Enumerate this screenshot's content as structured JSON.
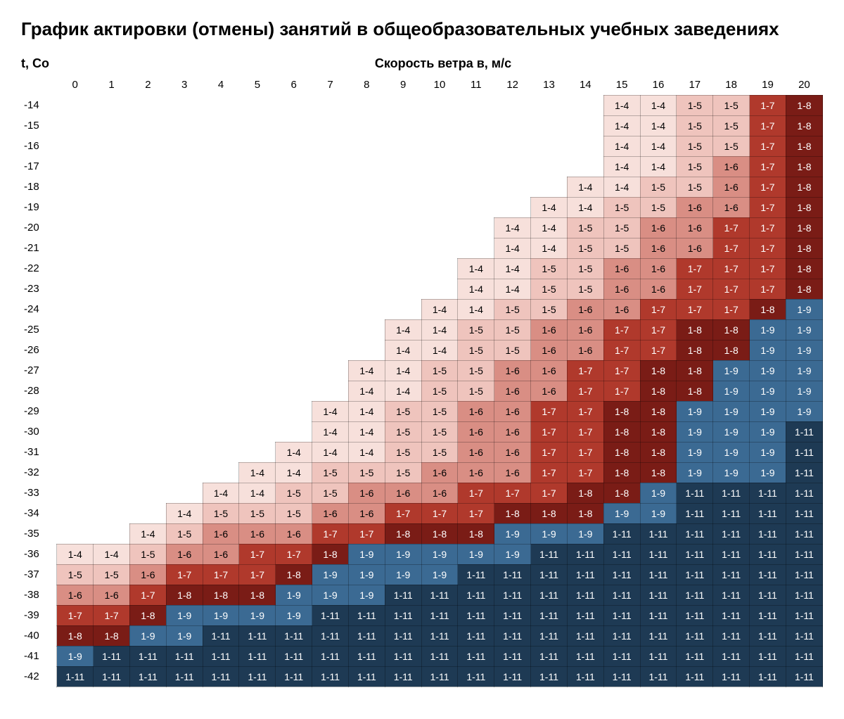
{
  "title": "График актировки (отмены) занятий в общеобразовательных учебных заведениях",
  "y_axis_label": "t, Со",
  "x_axis_label": "Скорость ветра в, м/с",
  "title_fontsize": 26,
  "header_fontsize": 18,
  "cell_fontsize": 14,
  "wind_speeds": [
    0,
    1,
    2,
    3,
    4,
    5,
    6,
    7,
    8,
    9,
    10,
    11,
    12,
    13,
    14,
    15,
    16,
    17,
    18,
    19,
    20
  ],
  "temperatures": [
    -14,
    -15,
    -16,
    -17,
    -18,
    -19,
    -20,
    -21,
    -22,
    -23,
    -24,
    -25,
    -26,
    -27,
    -28,
    -29,
    -30,
    -31,
    -32,
    -33,
    -34,
    -35,
    -36,
    -37,
    -38,
    -39,
    -40,
    -41,
    -42
  ],
  "grade_levels": {
    "1-4": {
      "bg": "#f7e0db",
      "fg": "#000000"
    },
    "1-5": {
      "bg": "#efc4bd",
      "fg": "#000000"
    },
    "1-6": {
      "bg": "#d98e84",
      "fg": "#000000"
    },
    "1-7": {
      "bg": "#b0392c",
      "fg": "#ffffff"
    },
    "1-8": {
      "bg": "#7a1c16",
      "fg": "#ffffff"
    },
    "1-9": {
      "bg": "#3b6a93",
      "fg": "#ffffff"
    },
    "1-11": {
      "bg": "#1e3a54",
      "fg": "#ffffff"
    }
  },
  "grid_border_color": "rgba(0,0,0,0.25)",
  "background_color": "#ffffff",
  "cells": {
    "-14": {
      "15": "1-4",
      "16": "1-4",
      "17": "1-5",
      "18": "1-5",
      "19": "1-7",
      "20": "1-8"
    },
    "-15": {
      "15": "1-4",
      "16": "1-4",
      "17": "1-5",
      "18": "1-5",
      "19": "1-7",
      "20": "1-8"
    },
    "-16": {
      "15": "1-4",
      "16": "1-4",
      "17": "1-5",
      "18": "1-5",
      "19": "1-7",
      "20": "1-8"
    },
    "-17": {
      "15": "1-4",
      "16": "1-4",
      "17": "1-5",
      "18": "1-6",
      "19": "1-7",
      "20": "1-8"
    },
    "-18": {
      "14": "1-4",
      "15": "1-4",
      "16": "1-5",
      "17": "1-5",
      "18": "1-6",
      "19": "1-7",
      "20": "1-8"
    },
    "-19": {
      "13": "1-4",
      "14": "1-4",
      "15": "1-5",
      "16": "1-5",
      "17": "1-6",
      "18": "1-6",
      "19": "1-7",
      "20": "1-8"
    },
    "-20": {
      "12": "1-4",
      "13": "1-4",
      "14": "1-5",
      "15": "1-5",
      "16": "1-6",
      "17": "1-6",
      "18": "1-7",
      "19": "1-7",
      "20": "1-8"
    },
    "-21": {
      "12": "1-4",
      "13": "1-4",
      "14": "1-5",
      "15": "1-5",
      "16": "1-6",
      "17": "1-6",
      "18": "1-7",
      "19": "1-7",
      "20": "1-8"
    },
    "-22": {
      "11": "1-4",
      "12": "1-4",
      "13": "1-5",
      "14": "1-5",
      "15": "1-6",
      "16": "1-6",
      "17": "1-7",
      "18": "1-7",
      "19": "1-7",
      "20": "1-8"
    },
    "-23": {
      "11": "1-4",
      "12": "1-4",
      "13": "1-5",
      "14": "1-5",
      "15": "1-6",
      "16": "1-6",
      "17": "1-7",
      "18": "1-7",
      "19": "1-7",
      "20": "1-8"
    },
    "-24": {
      "10": "1-4",
      "11": "1-4",
      "12": "1-5",
      "13": "1-5",
      "14": "1-6",
      "15": "1-6",
      "16": "1-7",
      "17": "1-7",
      "18": "1-7",
      "19": "1-8",
      "20": "1-9"
    },
    "-25": {
      "9": "1-4",
      "10": "1-4",
      "11": "1-5",
      "12": "1-5",
      "13": "1-6",
      "14": "1-6",
      "15": "1-7",
      "16": "1-7",
      "17": "1-8",
      "18": "1-8",
      "19": "1-9",
      "20": "1-9"
    },
    "-26": {
      "9": "1-4",
      "10": "1-4",
      "11": "1-5",
      "12": "1-5",
      "13": "1-6",
      "14": "1-6",
      "15": "1-7",
      "16": "1-7",
      "17": "1-8",
      "18": "1-8",
      "19": "1-9",
      "20": "1-9"
    },
    "-27": {
      "8": "1-4",
      "9": "1-4",
      "10": "1-5",
      "11": "1-5",
      "12": "1-6",
      "13": "1-6",
      "14": "1-7",
      "15": "1-7",
      "16": "1-8",
      "17": "1-8",
      "18": "1-9",
      "19": "1-9",
      "20": "1-9"
    },
    "-28": {
      "8": "1-4",
      "9": "1-4",
      "10": "1-5",
      "11": "1-5",
      "12": "1-6",
      "13": "1-6",
      "14": "1-7",
      "15": "1-7",
      "16": "1-8",
      "17": "1-8",
      "18": "1-9",
      "19": "1-9",
      "20": "1-9"
    },
    "-29": {
      "7": "1-4",
      "8": "1-4",
      "9": "1-5",
      "10": "1-5",
      "11": "1-6",
      "12": "1-6",
      "13": "1-7",
      "14": "1-7",
      "15": "1-8",
      "16": "1-8",
      "17": "1-9",
      "18": "1-9",
      "19": "1-9",
      "20": "1-9"
    },
    "-30": {
      "7": "1-4",
      "8": "1-4",
      "9": "1-5",
      "10": "1-5",
      "11": "1-6",
      "12": "1-6",
      "13": "1-7",
      "14": "1-7",
      "15": "1-8",
      "16": "1-8",
      "17": "1-9",
      "18": "1-9",
      "19": "1-9",
      "20": "1-11"
    },
    "-31": {
      "6": "1-4",
      "7": "1-4",
      "8": "1-4",
      "9": "1-5",
      "10": "1-5",
      "11": "1-6",
      "12": "1-6",
      "13": "1-7",
      "14": "1-7",
      "15": "1-8",
      "16": "1-8",
      "17": "1-9",
      "18": "1-9",
      "19": "1-9",
      "20": "1-11"
    },
    "-32": {
      "5": "1-4",
      "6": "1-4",
      "7": "1-5",
      "8": "1-5",
      "9": "1-5",
      "10": "1-6",
      "11": "1-6",
      "12": "1-6",
      "13": "1-7",
      "14": "1-7",
      "15": "1-8",
      "16": "1-8",
      "17": "1-9",
      "18": "1-9",
      "19": "1-9",
      "20": "1-11"
    },
    "-33": {
      "4": "1-4",
      "5": "1-4",
      "6": "1-5",
      "7": "1-5",
      "8": "1-6",
      "9": "1-6",
      "10": "1-6",
      "11": "1-7",
      "12": "1-7",
      "13": "1-7",
      "14": "1-8",
      "15": "1-8",
      "16": "1-9",
      "17": "1-11",
      "18": "1-11",
      "19": "1-11",
      "20": "1-11"
    },
    "-34": {
      "3": "1-4",
      "4": "1-5",
      "5": "1-5",
      "6": "1-5",
      "7": "1-6",
      "8": "1-6",
      "9": "1-7",
      "10": "1-7",
      "11": "1-7",
      "12": "1-8",
      "13": "1-8",
      "14": "1-8",
      "15": "1-9",
      "16": "1-9",
      "17": "1-11",
      "18": "1-11",
      "19": "1-11",
      "20": "1-11"
    },
    "-35": {
      "2": "1-4",
      "3": "1-5",
      "4": "1-6",
      "5": "1-6",
      "6": "1-6",
      "7": "1-7",
      "8": "1-7",
      "9": "1-8",
      "10": "1-8",
      "11": "1-8",
      "12": "1-9",
      "13": "1-9",
      "14": "1-9",
      "15": "1-11",
      "16": "1-11",
      "17": "1-11",
      "18": "1-11",
      "19": "1-11",
      "20": "1-11"
    },
    "-36": {
      "0": "1-4",
      "1": "1-4",
      "2": "1-5",
      "3": "1-6",
      "4": "1-6",
      "5": "1-7",
      "6": "1-7",
      "7": "1-8",
      "8": "1-9",
      "9": "1-9",
      "10": "1-9",
      "11": "1-9",
      "12": "1-9",
      "13": "1-11",
      "14": "1-11",
      "15": "1-11",
      "16": "1-11",
      "17": "1-11",
      "18": "1-11",
      "19": "1-11",
      "20": "1-11"
    },
    "-37": {
      "0": "1-5",
      "1": "1-5",
      "2": "1-6",
      "3": "1-7",
      "4": "1-7",
      "5": "1-7",
      "6": "1-8",
      "7": "1-9",
      "8": "1-9",
      "9": "1-9",
      "10": "1-9",
      "11": "1-11",
      "12": "1-11",
      "13": "1-11",
      "14": "1-11",
      "15": "1-11",
      "16": "1-11",
      "17": "1-11",
      "18": "1-11",
      "19": "1-11",
      "20": "1-11"
    },
    "-38": {
      "0": "1-6",
      "1": "1-6",
      "2": "1-7",
      "3": "1-8",
      "4": "1-8",
      "5": "1-8",
      "6": "1-9",
      "7": "1-9",
      "8": "1-9",
      "9": "1-11",
      "10": "1-11",
      "11": "1-11",
      "12": "1-11",
      "13": "1-11",
      "14": "1-11",
      "15": "1-11",
      "16": "1-11",
      "17": "1-11",
      "18": "1-11",
      "19": "1-11",
      "20": "1-11"
    },
    "-39": {
      "0": "1-7",
      "1": "1-7",
      "2": "1-8",
      "3": "1-9",
      "4": "1-9",
      "5": "1-9",
      "6": "1-9",
      "7": "1-11",
      "8": "1-11",
      "9": "1-11",
      "10": "1-11",
      "11": "1-11",
      "12": "1-11",
      "13": "1-11",
      "14": "1-11",
      "15": "1-11",
      "16": "1-11",
      "17": "1-11",
      "18": "1-11",
      "19": "1-11",
      "20": "1-11"
    },
    "-40": {
      "0": "1-8",
      "1": "1-8",
      "2": "1-9",
      "3": "1-9",
      "4": "1-11",
      "5": "1-11",
      "6": "1-11",
      "7": "1-11",
      "8": "1-11",
      "9": "1-11",
      "10": "1-11",
      "11": "1-11",
      "12": "1-11",
      "13": "1-11",
      "14": "1-11",
      "15": "1-11",
      "16": "1-11",
      "17": "1-11",
      "18": "1-11",
      "19": "1-11",
      "20": "1-11"
    },
    "-41": {
      "0": "1-9",
      "1": "1-11",
      "2": "1-11",
      "3": "1-11",
      "4": "1-11",
      "5": "1-11",
      "6": "1-11",
      "7": "1-11",
      "8": "1-11",
      "9": "1-11",
      "10": "1-11",
      "11": "1-11",
      "12": "1-11",
      "13": "1-11",
      "14": "1-11",
      "15": "1-11",
      "16": "1-11",
      "17": "1-11",
      "18": "1-11",
      "19": "1-11",
      "20": "1-11"
    },
    "-42": {
      "0": "1-11",
      "1": "1-11",
      "2": "1-11",
      "3": "1-11",
      "4": "1-11",
      "5": "1-11",
      "6": "1-11",
      "7": "1-11",
      "8": "1-11",
      "9": "1-11",
      "10": "1-11",
      "11": "1-11",
      "12": "1-11",
      "13": "1-11",
      "14": "1-11",
      "15": "1-11",
      "16": "1-11",
      "17": "1-11",
      "18": "1-11",
      "19": "1-11",
      "20": "1-11"
    }
  }
}
